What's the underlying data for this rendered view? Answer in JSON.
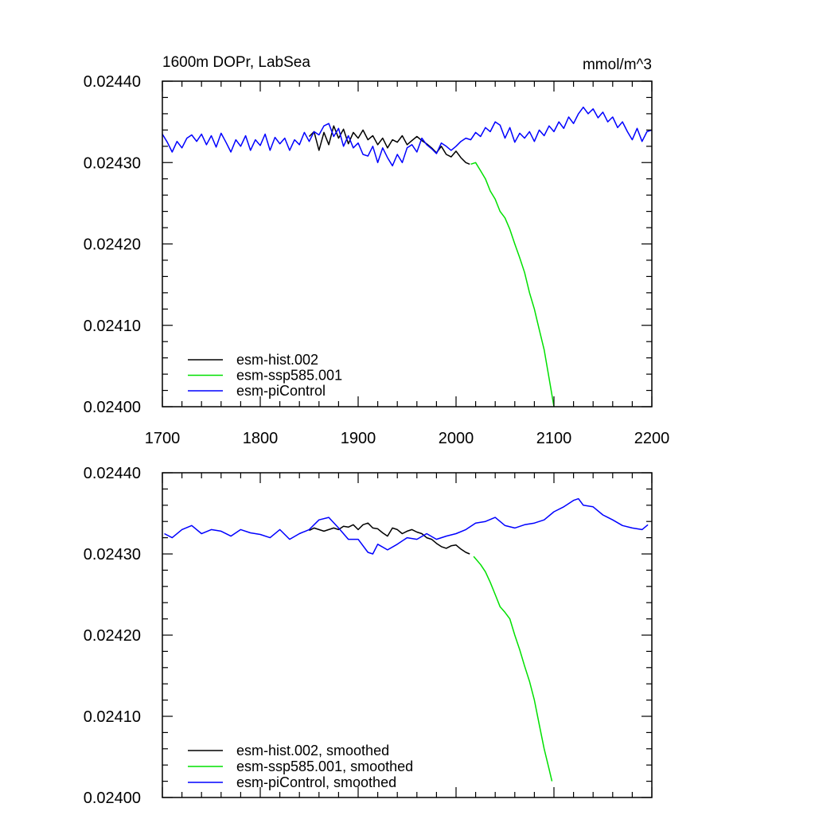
{
  "chart_data": [
    {
      "type": "line",
      "panel": "top",
      "title": "1600m DOPr, LabSea",
      "units": "mmol/m^3",
      "xlim": [
        1700,
        2200
      ],
      "ylim": [
        0.024,
        0.0244
      ],
      "xticks": [
        "1700",
        "1800",
        "1900",
        "2000",
        "2100",
        "2200"
      ],
      "yticks": [
        "0.02400",
        "0.02410",
        "0.02420",
        "0.02430",
        "0.02440"
      ],
      "grid": false,
      "legend_position": "bottom-left",
      "series": [
        {
          "name": "esm-hist.002",
          "color": "#000000",
          "x": [
            1850,
            1855,
            1860,
            1865,
            1870,
            1875,
            1880,
            1885,
            1890,
            1895,
            1900,
            1905,
            1910,
            1915,
            1920,
            1925,
            1930,
            1935,
            1940,
            1945,
            1950,
            1955,
            1960,
            1965,
            1970,
            1975,
            1980,
            1985,
            1990,
            1995,
            2000,
            2005,
            2010,
            2014
          ],
          "y": [
            0.024332,
            0.024338,
            0.024315,
            0.024337,
            0.024322,
            0.024345,
            0.02433,
            0.024341,
            0.024323,
            0.024337,
            0.02433,
            0.02434,
            0.024328,
            0.024333,
            0.024322,
            0.02433,
            0.024318,
            0.024328,
            0.024325,
            0.024333,
            0.024322,
            0.024327,
            0.024332,
            0.024327,
            0.024323,
            0.024318,
            0.024312,
            0.02432,
            0.02431,
            0.024307,
            0.024314,
            0.024306,
            0.0243,
            0.024298
          ]
        },
        {
          "name": "esm-ssp585.001",
          "color": "#00e000",
          "x": [
            2015,
            2020,
            2025,
            2030,
            2035,
            2040,
            2045,
            2050,
            2055,
            2060,
            2065,
            2070,
            2075,
            2080,
            2085,
            2090,
            2095,
            2100
          ],
          "y": [
            0.024298,
            0.0243,
            0.02429,
            0.02428,
            0.024265,
            0.024255,
            0.02424,
            0.024232,
            0.024218,
            0.0242,
            0.024183,
            0.024165,
            0.02414,
            0.02412,
            0.024095,
            0.02407,
            0.024035,
            0.024
          ]
        },
        {
          "name": "esm-piControl",
          "color": "#0000ff",
          "x": [
            1700,
            1705,
            1710,
            1715,
            1720,
            1725,
            1730,
            1735,
            1740,
            1745,
            1750,
            1755,
            1760,
            1765,
            1770,
            1775,
            1780,
            1785,
            1790,
            1795,
            1800,
            1805,
            1810,
            1815,
            1820,
            1825,
            1830,
            1835,
            1840,
            1845,
            1850,
            1855,
            1860,
            1865,
            1870,
            1875,
            1880,
            1885,
            1890,
            1895,
            1900,
            1905,
            1910,
            1915,
            1920,
            1925,
            1930,
            1935,
            1940,
            1945,
            1950,
            1955,
            1960,
            1965,
            1970,
            1975,
            1980,
            1985,
            1990,
            1995,
            2000,
            2005,
            2010,
            2015,
            2020,
            2025,
            2030,
            2035,
            2040,
            2045,
            2050,
            2055,
            2060,
            2065,
            2070,
            2075,
            2080,
            2085,
            2090,
            2095,
            2100,
            2105,
            2110,
            2115,
            2120,
            2125,
            2130,
            2135,
            2140,
            2145,
            2150,
            2155,
            2160,
            2165,
            2170,
            2175,
            2180,
            2185,
            2190,
            2195,
            2200
          ],
          "y": [
            0.024335,
            0.024325,
            0.024313,
            0.024326,
            0.024318,
            0.02433,
            0.024334,
            0.024326,
            0.024335,
            0.024322,
            0.024333,
            0.024319,
            0.024336,
            0.024325,
            0.024313,
            0.024328,
            0.02432,
            0.024333,
            0.024315,
            0.024328,
            0.024321,
            0.024335,
            0.024315,
            0.024331,
            0.024323,
            0.02433,
            0.024315,
            0.024328,
            0.024322,
            0.024337,
            0.024326,
            0.024338,
            0.024334,
            0.024345,
            0.024348,
            0.024332,
            0.024342,
            0.02432,
            0.024333,
            0.024318,
            0.024324,
            0.02431,
            0.024308,
            0.02432,
            0.0243,
            0.024318,
            0.024306,
            0.024296,
            0.02431,
            0.0243,
            0.024318,
            0.024322,
            0.024313,
            0.02433,
            0.024322,
            0.024317,
            0.024311,
            0.024324,
            0.02432,
            0.024315,
            0.02432,
            0.024326,
            0.02433,
            0.024328,
            0.024337,
            0.024332,
            0.024343,
            0.024338,
            0.02435,
            0.024346,
            0.02433,
            0.024343,
            0.024325,
            0.024336,
            0.02433,
            0.024338,
            0.024326,
            0.02434,
            0.024333,
            0.024345,
            0.024338,
            0.02435,
            0.024342,
            0.024356,
            0.024348,
            0.02436,
            0.024368,
            0.02436,
            0.024366,
            0.024355,
            0.024362,
            0.02435,
            0.024356,
            0.024343,
            0.02435,
            0.024338,
            0.024328,
            0.024342,
            0.024326,
            0.024338,
            0.02434
          ]
        }
      ]
    },
    {
      "type": "line",
      "panel": "bottom",
      "xlim": [
        1700,
        2200
      ],
      "ylim": [
        0.024,
        0.0244
      ],
      "yticks": [
        "0.02400",
        "0.02410",
        "0.02420",
        "0.02430",
        "0.02440"
      ],
      "grid": false,
      "legend_position": "bottom-left",
      "series": [
        {
          "name": "esm-hist.002, smoothed",
          "color": "#000000",
          "x": [
            1850,
            1855,
            1860,
            1865,
            1870,
            1875,
            1880,
            1885,
            1890,
            1895,
            1900,
            1905,
            1910,
            1915,
            1920,
            1925,
            1930,
            1935,
            1940,
            1945,
            1950,
            1955,
            1960,
            1965,
            1970,
            1975,
            1980,
            1985,
            1990,
            1995,
            2000,
            2005,
            2010,
            2014
          ],
          "y": [
            0.024329,
            0.024332,
            0.02433,
            0.024328,
            0.02433,
            0.024332,
            0.02433,
            0.024334,
            0.024333,
            0.024336,
            0.02433,
            0.024336,
            0.024338,
            0.024332,
            0.024331,
            0.024326,
            0.024322,
            0.024332,
            0.02433,
            0.024325,
            0.024328,
            0.02433,
            0.024327,
            0.024325,
            0.02432,
            0.024318,
            0.024313,
            0.024309,
            0.024307,
            0.02431,
            0.024311,
            0.024306,
            0.024302,
            0.0243
          ]
        },
        {
          "name": "esm-ssp585.001, smoothed",
          "color": "#00e000",
          "x": [
            2018,
            2025,
            2030,
            2035,
            2040,
            2045,
            2050,
            2055,
            2060,
            2065,
            2070,
            2075,
            2080,
            2085,
            2090,
            2095,
            2098
          ],
          "y": [
            0.024297,
            0.024287,
            0.024278,
            0.024265,
            0.02425,
            0.024235,
            0.024228,
            0.02422,
            0.0242,
            0.024182,
            0.024162,
            0.024143,
            0.02412,
            0.02409,
            0.02406,
            0.024035,
            0.02402
          ]
        },
        {
          "name": "esm-piControl, smoothed",
          "color": "#0000ff",
          "x": [
            1702,
            1710,
            1720,
            1730,
            1740,
            1750,
            1760,
            1770,
            1780,
            1790,
            1800,
            1810,
            1820,
            1830,
            1840,
            1850,
            1860,
            1870,
            1880,
            1890,
            1900,
            1910,
            1915,
            1920,
            1930,
            1940,
            1950,
            1960,
            1970,
            1980,
            1990,
            2000,
            2010,
            2020,
            2030,
            2040,
            2050,
            2060,
            2070,
            2080,
            2090,
            2100,
            2110,
            2120,
            2125,
            2130,
            2140,
            2150,
            2160,
            2170,
            2180,
            2190,
            2196
          ],
          "y": [
            0.024325,
            0.02432,
            0.02433,
            0.024335,
            0.024325,
            0.02433,
            0.024328,
            0.024322,
            0.02433,
            0.024326,
            0.024324,
            0.02432,
            0.02433,
            0.024318,
            0.024325,
            0.02433,
            0.024342,
            0.024345,
            0.024332,
            0.024318,
            0.024318,
            0.024302,
            0.0243,
            0.024312,
            0.024305,
            0.024312,
            0.02432,
            0.024318,
            0.024325,
            0.024318,
            0.024322,
            0.024325,
            0.02433,
            0.024338,
            0.02434,
            0.024345,
            0.024335,
            0.024332,
            0.024336,
            0.024338,
            0.024342,
            0.024352,
            0.024358,
            0.024366,
            0.024368,
            0.02436,
            0.024358,
            0.024348,
            0.024342,
            0.024335,
            0.024332,
            0.02433,
            0.024336
          ]
        }
      ]
    }
  ]
}
